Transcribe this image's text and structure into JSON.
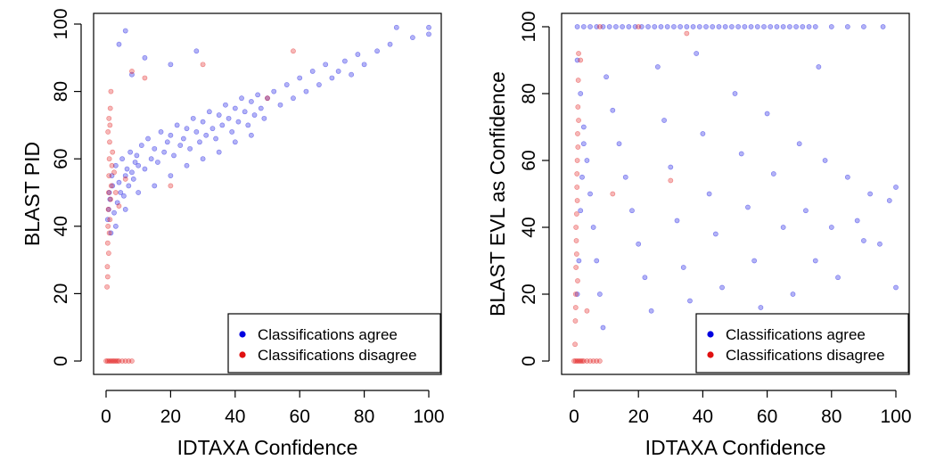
{
  "chart_data": [
    {
      "type": "scatter",
      "xlabel": "IDTAXA Confidence",
      "ylabel": "BLAST PID",
      "xlim": [
        0,
        100
      ],
      "ylim": [
        0,
        100
      ],
      "x_ticks": [
        0,
        20,
        40,
        60,
        80,
        100
      ],
      "y_ticks": [
        0,
        20,
        40,
        60,
        80,
        100
      ],
      "legend_position": "bottom-right",
      "series": [
        {
          "name": "Classifications agree",
          "color": "#0000e0",
          "points": [
            [
              0.5,
              42
            ],
            [
              0.8,
              45
            ],
            [
              1,
              50
            ],
            [
              1.2,
              48
            ],
            [
              1.5,
              38
            ],
            [
              1.8,
              55
            ],
            [
              2,
              52
            ],
            [
              2.5,
              44
            ],
            [
              3,
              58
            ],
            [
              3.5,
              47
            ],
            [
              4,
              53
            ],
            [
              4.5,
              50
            ],
            [
              5,
              60
            ],
            [
              5.5,
              49
            ],
            [
              6,
              55
            ],
            [
              6.5,
              57
            ],
            [
              7,
              52
            ],
            [
              7.5,
              62
            ],
            [
              8,
              56
            ],
            [
              8.5,
              54
            ],
            [
              9,
              59
            ],
            [
              9.5,
              61
            ],
            [
              10,
              58
            ],
            [
              11,
              64
            ],
            [
              12,
              57
            ],
            [
              13,
              66
            ],
            [
              14,
              60
            ],
            [
              15,
              63
            ],
            [
              16,
              59
            ],
            [
              17,
              68
            ],
            [
              18,
              62
            ],
            [
              19,
              65
            ],
            [
              20,
              67
            ],
            [
              21,
              61
            ],
            [
              22,
              70
            ],
            [
              23,
              64
            ],
            [
              24,
              66
            ],
            [
              25,
              69
            ],
            [
              26,
              63
            ],
            [
              27,
              72
            ],
            [
              28,
              68
            ],
            [
              29,
              65
            ],
            [
              30,
              71
            ],
            [
              31,
              67
            ],
            [
              32,
              74
            ],
            [
              33,
              69
            ],
            [
              34,
              66
            ],
            [
              35,
              73
            ],
            [
              36,
              70
            ],
            [
              37,
              76
            ],
            [
              38,
              72
            ],
            [
              39,
              68
            ],
            [
              40,
              75
            ],
            [
              41,
              71
            ],
            [
              42,
              78
            ],
            [
              43,
              74
            ],
            [
              44,
              70
            ],
            [
              45,
              77
            ],
            [
              46,
              73
            ],
            [
              47,
              79
            ],
            [
              48,
              75
            ],
            [
              49,
              72
            ],
            [
              50,
              78
            ],
            [
              52,
              80
            ],
            [
              54,
              76
            ],
            [
              56,
              82
            ],
            [
              58,
              78
            ],
            [
              60,
              84
            ],
            [
              62,
              80
            ],
            [
              64,
              86
            ],
            [
              66,
              82
            ],
            [
              68,
              88
            ],
            [
              70,
              84
            ],
            [
              72,
              86
            ],
            [
              74,
              89
            ],
            [
              76,
              85
            ],
            [
              78,
              91
            ],
            [
              80,
              88
            ],
            [
              84,
              92
            ],
            [
              88,
              94
            ],
            [
              90,
              99
            ],
            [
              95,
              96
            ],
            [
              100,
              97
            ],
            [
              100,
              99
            ],
            [
              3,
              40
            ],
            [
              6,
              45
            ],
            [
              10,
              50
            ],
            [
              15,
              52
            ],
            [
              20,
              55
            ],
            [
              25,
              58
            ],
            [
              30,
              60
            ],
            [
              35,
              62
            ],
            [
              40,
              65
            ],
            [
              45,
              67
            ],
            [
              8,
              85
            ],
            [
              12,
              90
            ],
            [
              20,
              88
            ],
            [
              28,
              92
            ],
            [
              4,
              94
            ],
            [
              6,
              98
            ]
          ]
        },
        {
          "name": "Classifications disagree",
          "color": "#e01010",
          "points": [
            [
              0,
              0
            ],
            [
              0.5,
              0
            ],
            [
              1,
              0
            ],
            [
              1.5,
              0
            ],
            [
              2,
              0
            ],
            [
              2.5,
              0
            ],
            [
              3,
              0
            ],
            [
              3.5,
              0
            ],
            [
              4,
              0
            ],
            [
              5,
              0
            ],
            [
              6,
              0
            ],
            [
              7,
              0
            ],
            [
              8,
              0
            ],
            [
              0.3,
              22
            ],
            [
              0.4,
              28
            ],
            [
              0.5,
              35
            ],
            [
              0.6,
              40
            ],
            [
              0.7,
              45
            ],
            [
              0.8,
              50
            ],
            [
              0.9,
              55
            ],
            [
              1,
              60
            ],
            [
              1.1,
              65
            ],
            [
              1.2,
              70
            ],
            [
              1.3,
              75
            ],
            [
              1.5,
              80
            ],
            [
              0.5,
              25
            ],
            [
              0.8,
              32
            ],
            [
              1,
              38
            ],
            [
              1.2,
              42
            ],
            [
              1.4,
              48
            ],
            [
              1.6,
              52
            ],
            [
              1.8,
              58
            ],
            [
              2,
              62
            ],
            [
              2.5,
              56
            ],
            [
              3,
              50
            ],
            [
              4,
              46
            ],
            [
              6,
              54
            ],
            [
              8,
              86
            ],
            [
              12,
              84
            ],
            [
              20,
              52
            ],
            [
              30,
              88
            ],
            [
              58,
              92
            ],
            [
              50,
              78
            ],
            [
              0.6,
              68
            ],
            [
              0.9,
              72
            ]
          ]
        }
      ]
    },
    {
      "type": "scatter",
      "xlabel": "IDTAXA Confidence",
      "ylabel": "BLAST EVL as Confidence",
      "xlim": [
        0,
        100
      ],
      "ylim": [
        0,
        100
      ],
      "x_ticks": [
        0,
        20,
        40,
        60,
        80,
        100
      ],
      "y_ticks": [
        0,
        20,
        40,
        60,
        80,
        100
      ],
      "legend_position": "bottom-right",
      "series": [
        {
          "name": "Classifications agree",
          "color": "#0000e0",
          "points": [
            [
              1,
              100
            ],
            [
              3,
              100
            ],
            [
              5,
              100
            ],
            [
              7,
              100
            ],
            [
              9,
              100
            ],
            [
              11,
              100
            ],
            [
              13,
              100
            ],
            [
              15,
              100
            ],
            [
              17,
              100
            ],
            [
              19,
              100
            ],
            [
              21,
              100
            ],
            [
              23,
              100
            ],
            [
              25,
              100
            ],
            [
              27,
              100
            ],
            [
              29,
              100
            ],
            [
              31,
              100
            ],
            [
              33,
              100
            ],
            [
              35,
              100
            ],
            [
              37,
              100
            ],
            [
              39,
              100
            ],
            [
              41,
              100
            ],
            [
              43,
              100
            ],
            [
              45,
              100
            ],
            [
              47,
              100
            ],
            [
              49,
              100
            ],
            [
              51,
              100
            ],
            [
              53,
              100
            ],
            [
              55,
              100
            ],
            [
              57,
              100
            ],
            [
              59,
              100
            ],
            [
              61,
              100
            ],
            [
              63,
              100
            ],
            [
              65,
              100
            ],
            [
              67,
              100
            ],
            [
              69,
              100
            ],
            [
              71,
              100
            ],
            [
              73,
              100
            ],
            [
              75,
              100
            ],
            [
              80,
              100
            ],
            [
              85,
              100
            ],
            [
              90,
              100
            ],
            [
              96,
              100
            ],
            [
              1,
              90
            ],
            [
              2,
              80
            ],
            [
              3,
              70
            ],
            [
              4,
              60
            ],
            [
              5,
              50
            ],
            [
              6,
              40
            ],
            [
              7,
              30
            ],
            [
              8,
              20
            ],
            [
              9,
              10
            ],
            [
              10,
              85
            ],
            [
              12,
              75
            ],
            [
              14,
              65
            ],
            [
              16,
              55
            ],
            [
              18,
              45
            ],
            [
              20,
              35
            ],
            [
              22,
              25
            ],
            [
              24,
              15
            ],
            [
              26,
              88
            ],
            [
              28,
              72
            ],
            [
              30,
              58
            ],
            [
              32,
              42
            ],
            [
              34,
              28
            ],
            [
              36,
              18
            ],
            [
              38,
              92
            ],
            [
              40,
              68
            ],
            [
              42,
              50
            ],
            [
              44,
              38
            ],
            [
              46,
              22
            ],
            [
              48,
              12
            ],
            [
              50,
              80
            ],
            [
              52,
              62
            ],
            [
              54,
              46
            ],
            [
              56,
              30
            ],
            [
              58,
              16
            ],
            [
              60,
              74
            ],
            [
              62,
              56
            ],
            [
              65,
              40
            ],
            [
              68,
              20
            ],
            [
              70,
              65
            ],
            [
              72,
              45
            ],
            [
              75,
              30
            ],
            [
              76,
              88
            ],
            [
              78,
              60
            ],
            [
              80,
              40
            ],
            [
              82,
              25
            ],
            [
              85,
              55
            ],
            [
              88,
              42
            ],
            [
              90,
              36
            ],
            [
              92,
              50
            ],
            [
              95,
              35
            ],
            [
              98,
              48
            ],
            [
              100,
              52
            ],
            [
              100,
              22
            ],
            [
              1,
              20
            ],
            [
              1.5,
              30
            ],
            [
              2,
              45
            ],
            [
              2.5,
              55
            ],
            [
              3,
              65
            ]
          ]
        },
        {
          "name": "Classifications disagree",
          "color": "#e01010",
          "points": [
            [
              0,
              0
            ],
            [
              0.5,
              0
            ],
            [
              1,
              0
            ],
            [
              1.5,
              0
            ],
            [
              2,
              0
            ],
            [
              2.5,
              0
            ],
            [
              3,
              0
            ],
            [
              4,
              0
            ],
            [
              5,
              0
            ],
            [
              6,
              0
            ],
            [
              7,
              0
            ],
            [
              8,
              0
            ],
            [
              0.3,
              5
            ],
            [
              0.4,
              12
            ],
            [
              0.5,
              20
            ],
            [
              0.6,
              28
            ],
            [
              0.7,
              36
            ],
            [
              0.8,
              44
            ],
            [
              0.9,
              52
            ],
            [
              1,
              60
            ],
            [
              1.1,
              68
            ],
            [
              1.2,
              76
            ],
            [
              1.3,
              84
            ],
            [
              1.4,
              92
            ],
            [
              0.5,
              16
            ],
            [
              0.8,
              32
            ],
            [
              1,
              48
            ],
            [
              1.2,
              64
            ],
            [
              1.4,
              72
            ],
            [
              0.6,
              40
            ],
            [
              0.9,
              56
            ],
            [
              1.1,
              24
            ],
            [
              2,
              90
            ],
            [
              12,
              50
            ],
            [
              30,
              54
            ],
            [
              20,
              100
            ],
            [
              35,
              98
            ],
            [
              8,
              100
            ],
            [
              4,
              15
            ]
          ]
        }
      ]
    }
  ]
}
